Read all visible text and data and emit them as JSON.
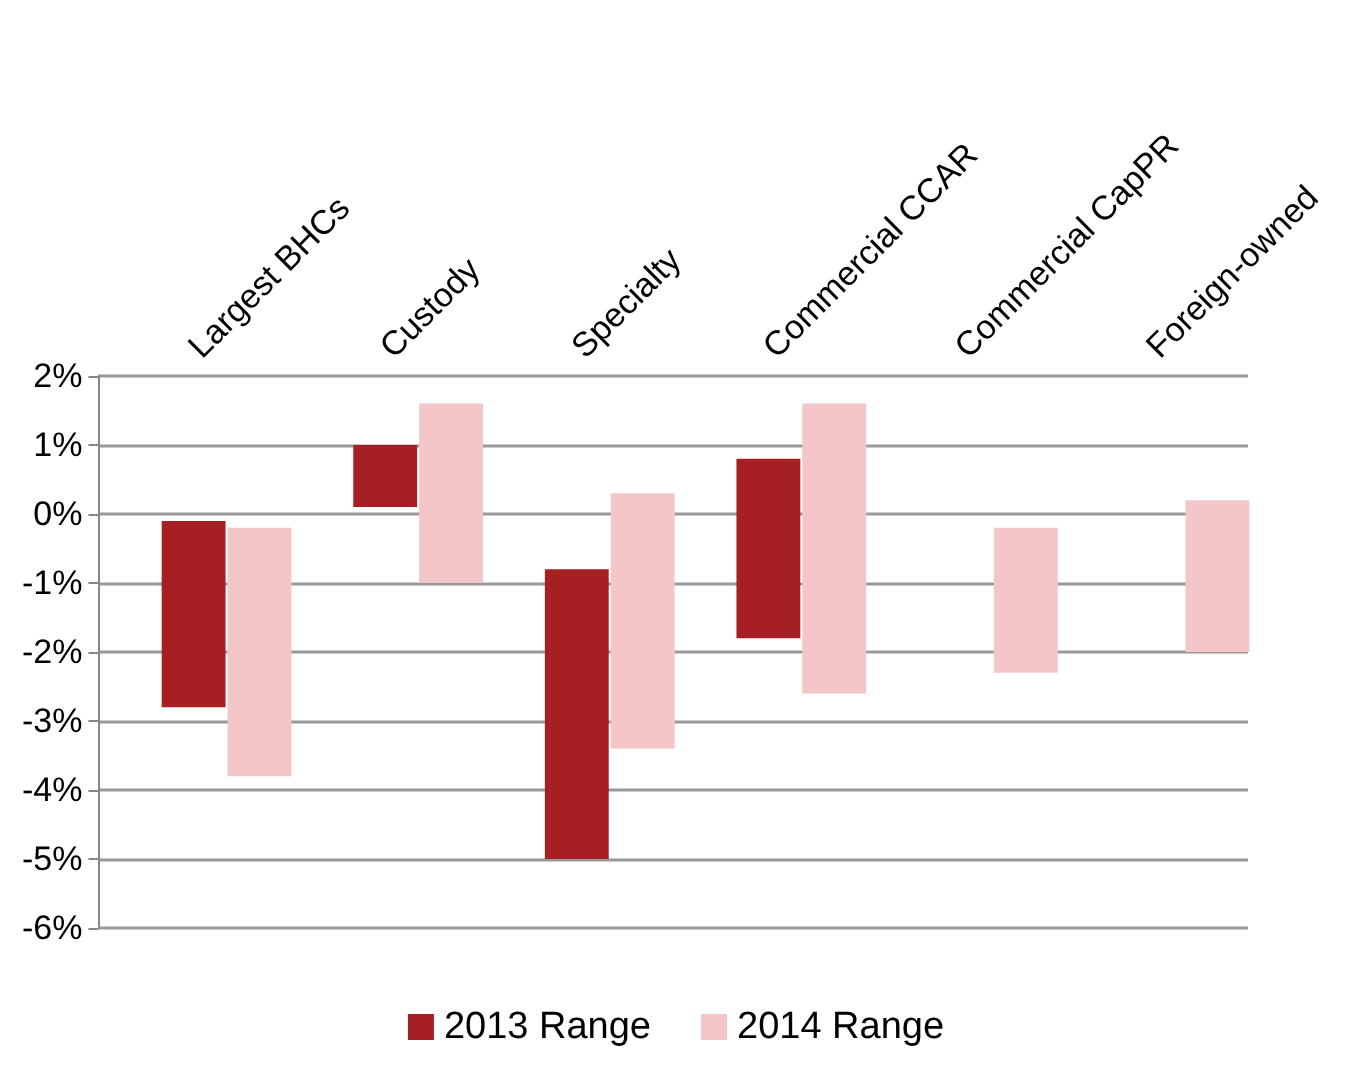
{
  "chart_data": {
    "type": "bar",
    "categories": [
      "Largest BHCs",
      "Custody",
      "Specialty",
      "Commercial CCAR",
      "Commercial CapPR",
      "Foreign-owned"
    ],
    "series": [
      {
        "name": "2013 Range",
        "color": "#a51f23",
        "base": [
          -2.8,
          0.1,
          -5.0,
          -1.8,
          null,
          null
        ],
        "values": [
          2.7,
          0.9,
          4.2,
          2.6,
          null,
          null
        ]
      },
      {
        "name": "2014 Range",
        "color": "#f4c6c7",
        "base": [
          -3.8,
          -1.0,
          -3.4,
          -2.6,
          -2.3,
          -2.0
        ],
        "values": [
          3.6,
          2.6,
          3.7,
          4.2,
          2.1,
          2.2
        ]
      }
    ],
    "ylim": [
      -6,
      2
    ],
    "yticks": [
      {
        "value": -6,
        "label": "-6%"
      },
      {
        "value": -5,
        "label": "-5%"
      },
      {
        "value": -4,
        "label": "-4%"
      },
      {
        "value": -3,
        "label": "-3%"
      },
      {
        "value": -2,
        "label": "-2%"
      },
      {
        "value": -1,
        "label": "-1%"
      },
      {
        "value": 0,
        "label": "0%"
      },
      {
        "value": 1,
        "label": "1%"
      },
      {
        "value": 2,
        "label": "2%"
      }
    ],
    "grid": "y",
    "legend": "bottom"
  }
}
